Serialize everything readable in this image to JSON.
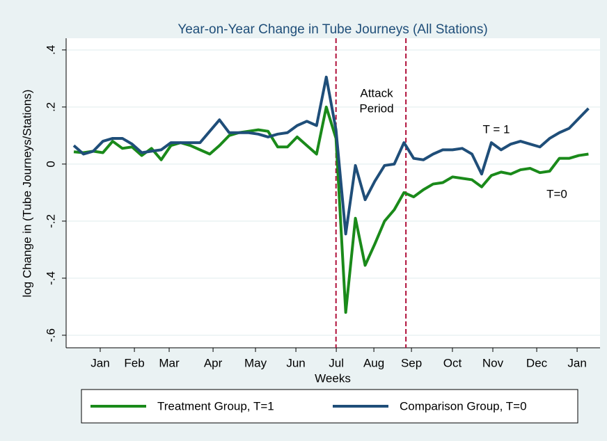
{
  "chart_data": {
    "type": "line",
    "title": "Year-on-Year Change in Tube Journeys (All Stations)",
    "x_label": "Weeks",
    "y_label": "log Change in (Tube Journeys/Stations)",
    "x": [
      1,
      2,
      3,
      4,
      5,
      6,
      7,
      8,
      9,
      10,
      11,
      12,
      13,
      14,
      15,
      16,
      17,
      18,
      19,
      20,
      21,
      22,
      23,
      24,
      25,
      26,
      27,
      28,
      29,
      30,
      31,
      32,
      33,
      34,
      35,
      36,
      37,
      38,
      39,
      40,
      41,
      42,
      43,
      44,
      45,
      46,
      47,
      48,
      49,
      50,
      51,
      52,
      53,
      54
    ],
    "series": [
      {
        "name": "Treatment Group, T=1",
        "color": "#1a8a1a",
        "values": [
          0.043,
          0.04,
          0.045,
          0.04,
          0.08,
          0.055,
          0.06,
          0.03,
          0.055,
          0.015,
          0.065,
          0.075,
          0.065,
          0.05,
          0.035,
          0.065,
          0.1,
          0.11,
          0.115,
          0.12,
          0.115,
          0.06,
          0.06,
          0.095,
          0.065,
          0.035,
          0.2,
          0.09,
          -0.52,
          -0.19,
          -0.355,
          -0.28,
          -0.2,
          -0.16,
          -0.1,
          -0.115,
          -0.09,
          -0.07,
          -0.065,
          -0.045,
          -0.05,
          -0.055,
          -0.08,
          -0.04,
          -0.028,
          -0.035,
          -0.02,
          -0.015,
          -0.03,
          -0.025,
          0.02,
          0.02,
          0.03,
          0.035
        ]
      },
      {
        "name": "Comparison Group, T=0",
        "color": "#1f4e79",
        "values": [
          0.065,
          0.035,
          0.045,
          0.08,
          0.09,
          0.09,
          0.07,
          0.04,
          0.045,
          0.05,
          0.075,
          0.075,
          0.075,
          0.075,
          0.115,
          0.155,
          0.11,
          0.11,
          0.11,
          0.105,
          0.095,
          0.105,
          0.11,
          0.135,
          0.15,
          0.135,
          0.305,
          0.12,
          -0.245,
          -0.005,
          -0.125,
          -0.06,
          -0.005,
          0,
          0.075,
          0.02,
          0.015,
          0.035,
          0.05,
          0.05,
          0.055,
          0.035,
          -0.035,
          0.075,
          0.05,
          0.07,
          0.08,
          0.07,
          0.06,
          0.09,
          0.11,
          0.125,
          0.16,
          0.195
        ]
      }
    ],
    "xlim": [
      0.21,
      55.19
    ],
    "ylim": [
      -0.644,
      0.441
    ],
    "xticks": [
      {
        "value": 3.72,
        "label": "Jan"
      },
      {
        "value": 7.24,
        "label": "Feb"
      },
      {
        "value": 10.82,
        "label": "Mar"
      },
      {
        "value": 15.34,
        "label": "Apr"
      },
      {
        "value": 19.71,
        "label": "May"
      },
      {
        "value": 23.87,
        "label": "Jun"
      },
      {
        "value": 28.03,
        "label": "Jul"
      },
      {
        "value": 31.9,
        "label": "Aug"
      },
      {
        "value": 35.77,
        "label": "Sep"
      },
      {
        "value": 39.99,
        "label": "Oct"
      },
      {
        "value": 44.15,
        "label": "Nov"
      },
      {
        "value": 48.67,
        "label": "Dec"
      },
      {
        "value": 52.83,
        "label": "Jan"
      }
    ],
    "yticks": [
      {
        "value": 0.4,
        "label": ".4"
      },
      {
        "value": 0.2,
        "label": ".2"
      },
      0,
      {
        "value": -0.2,
        "label": "-.2"
      },
      {
        "value": -0.4,
        "label": "-.4"
      },
      {
        "value": -0.6,
        "label": "-.6"
      }
    ],
    "vlines": [
      28.0,
      35.2
    ],
    "vline_color": "#b0103a",
    "grid": true,
    "legend": "bottom",
    "annotations": [
      [
        "Attack",
        "Period"
      ],
      [
        "T = 1"
      ],
      [
        "T=0"
      ]
    ]
  }
}
